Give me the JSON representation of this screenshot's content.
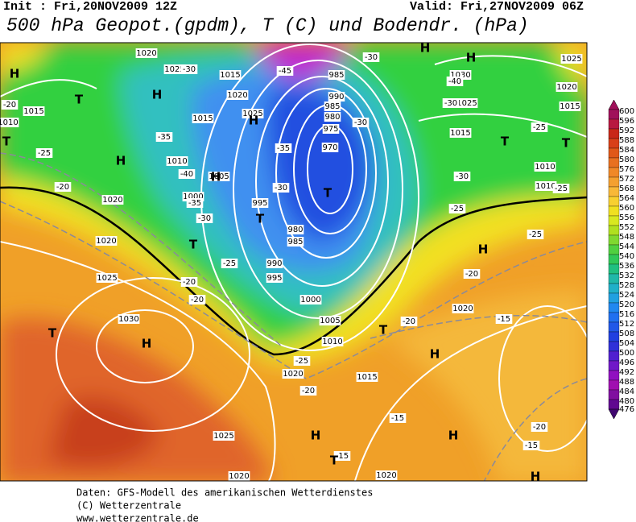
{
  "header": {
    "init": "Init : Fri,20NOV2009 12Z",
    "valid": "Valid: Fri,27NOV2009 06Z",
    "title": "500 hPa Geopot.(gpdm), T (C) und Bodendr. (hPa)"
  },
  "legend": {
    "labels": [
      600,
      596,
      592,
      588,
      584,
      580,
      576,
      572,
      568,
      564,
      560,
      556,
      552,
      548,
      544,
      540,
      536,
      532,
      528,
      524,
      520,
      516,
      512,
      508,
      504,
      500,
      496,
      492,
      488,
      484,
      480,
      476
    ]
  },
  "map": {
    "centers": [
      "H",
      "H",
      "H",
      "H",
      "H",
      "H",
      "H",
      "H",
      "H",
      "H",
      "H",
      "H",
      "H",
      "T",
      "T",
      "T",
      "T",
      "T",
      "T",
      "T",
      "T",
      "T",
      "T"
    ],
    "isobars": [
      "1020",
      "1025",
      "1015",
      "1020",
      "1025",
      "1015",
      "1010",
      "1005",
      "1000",
      "995",
      "985",
      "990",
      "985",
      "980",
      "975",
      "970",
      "980",
      "985",
      "990",
      "995",
      "1000",
      "1005",
      "1010",
      "1015",
      "1020",
      "1025",
      "1020",
      "1020",
      "1030",
      "1025",
      "1020",
      "1020",
      "1015",
      "1010",
      "1030",
      "1025",
      "1015",
      "1010",
      "1015",
      "1020",
      "1025",
      "1020",
      "1010"
    ],
    "temperatures": [
      "-45",
      "-30",
      "-40",
      "-30",
      "-25",
      "-30",
      "-25",
      "-25",
      "-20",
      "-15",
      "-20",
      "-15",
      "-15",
      "-20",
      "-20",
      "-25",
      "-20",
      "-20",
      "-25",
      "-30",
      "-35",
      "-40",
      "-35",
      "-30",
      "-25",
      "-20",
      "-20",
      "-30",
      "-35",
      "-30",
      "-15",
      "-25"
    ]
  },
  "footer": [
    "Daten: GFS-Modell des amerikanischen Wetterdienstes",
    "(C) Wetterzentrale",
    "www.wetterzentrale.de"
  ]
}
